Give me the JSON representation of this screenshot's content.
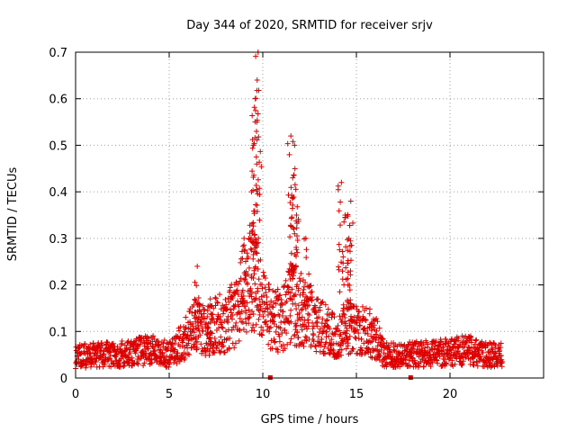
{
  "chart_data": {
    "type": "scatter",
    "title": "Day 344 of 2020, SRMTID for receiver srjv",
    "xlabel": "GPS time / hours",
    "ylabel": "SRMTID / TECUs",
    "xlim": [
      0,
      25
    ],
    "ylim": [
      0,
      0.7
    ],
    "xticks": [
      0,
      5,
      10,
      15,
      20
    ],
    "yticks": [
      0,
      0.1,
      0.2,
      0.3,
      0.4,
      0.5,
      0.6,
      0.7
    ],
    "xtick_labels": [
      "0",
      "5",
      "10",
      "15",
      "20"
    ],
    "ytick_labels": [
      "0",
      "0.1",
      "0.2",
      "0.3",
      "0.4",
      "0.5",
      "0.6",
      "0.7"
    ],
    "grid": true,
    "marker": "plus",
    "series": [
      {
        "name": "SRMTID",
        "color": "#dd0000",
        "marker_color": "#dd0000",
        "baseline_profile": [
          [
            0.0,
            0.045
          ],
          [
            1.0,
            0.05
          ],
          [
            2.0,
            0.05
          ],
          [
            3.0,
            0.055
          ],
          [
            4.0,
            0.06
          ],
          [
            5.0,
            0.05
          ],
          [
            6.0,
            0.09
          ],
          [
            6.5,
            0.12
          ],
          [
            7.0,
            0.1
          ],
          [
            7.5,
            0.12
          ],
          [
            8.0,
            0.11
          ],
          [
            8.5,
            0.14
          ],
          [
            9.0,
            0.18
          ],
          [
            9.5,
            0.22
          ],
          [
            10.0,
            0.16
          ],
          [
            10.5,
            0.13
          ],
          [
            11.0,
            0.12
          ],
          [
            11.5,
            0.16
          ],
          [
            12.0,
            0.15
          ],
          [
            12.5,
            0.14
          ],
          [
            13.0,
            0.11
          ],
          [
            13.5,
            0.1
          ],
          [
            14.0,
            0.08
          ],
          [
            14.5,
            0.11
          ],
          [
            15.0,
            0.1
          ],
          [
            15.5,
            0.1
          ],
          [
            16.0,
            0.09
          ],
          [
            16.5,
            0.05
          ],
          [
            18.0,
            0.05
          ],
          [
            20.0,
            0.055
          ],
          [
            21.0,
            0.06
          ],
          [
            22.0,
            0.05
          ],
          [
            22.8,
            0.05
          ]
        ],
        "peaks": [
          [
            9.75,
            0.7
          ],
          [
            9.7,
            0.64
          ],
          [
            9.6,
            0.6
          ],
          [
            9.5,
            0.5
          ],
          [
            9.4,
            0.4
          ],
          [
            9.0,
            0.3
          ],
          [
            11.5,
            0.52
          ],
          [
            11.7,
            0.5
          ],
          [
            11.6,
            0.43
          ],
          [
            11.8,
            0.35
          ],
          [
            12.3,
            0.3
          ],
          [
            14.2,
            0.42
          ],
          [
            14.7,
            0.38
          ],
          [
            14.4,
            0.35
          ],
          [
            14.6,
            0.3
          ],
          [
            6.5,
            0.24
          ],
          [
            7.2,
            0.17
          ]
        ]
      }
    ],
    "extra_markers": [
      {
        "x": 10.4,
        "y": 0.0,
        "shape": "square"
      },
      {
        "x": 17.9,
        "y": 0.0,
        "shape": "square"
      }
    ]
  }
}
